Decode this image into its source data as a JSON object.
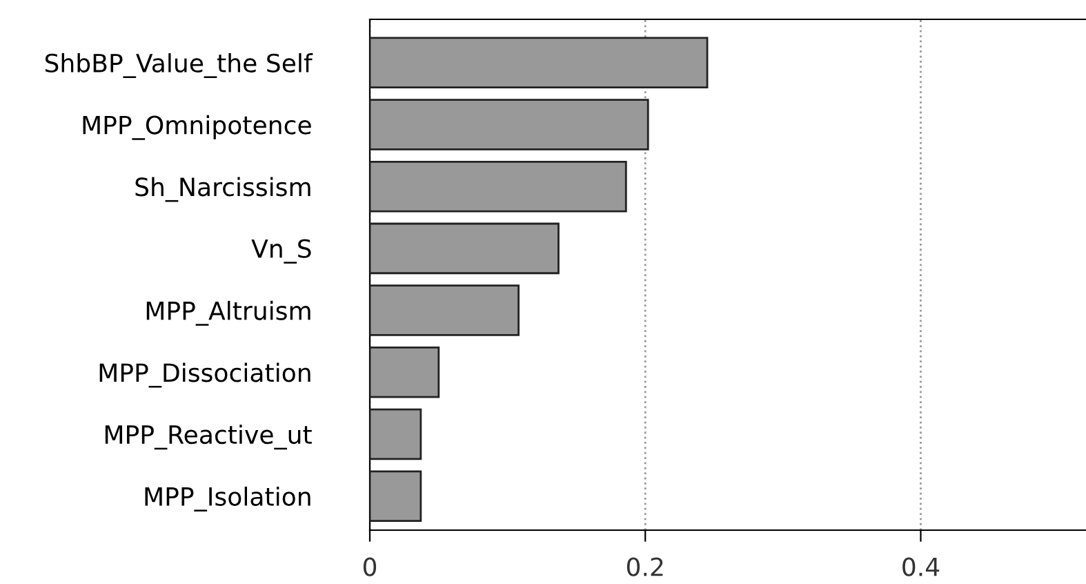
{
  "chart_data": {
    "type": "bar",
    "orientation": "horizontal",
    "categories": [
      "ShbBP_Value_the Self",
      "MPP_Omnipotence",
      "Sh_Narcissism",
      "Vn_S",
      "MPP_Altruism",
      "MPP_Dissociation",
      "MPP_Reactive_ut",
      "MPP_Isolation"
    ],
    "values": [
      0.245,
      0.202,
      0.186,
      0.137,
      0.108,
      0.05,
      0.037,
      0.037
    ],
    "color": "#999999",
    "xlim": [
      0,
      0.52
    ],
    "xticks": [
      0,
      {
        "value": 0.2,
        "label": "0.2"
      },
      {
        "value": 0.4,
        "label": "0.4"
      }
    ],
    "grid": "x"
  }
}
